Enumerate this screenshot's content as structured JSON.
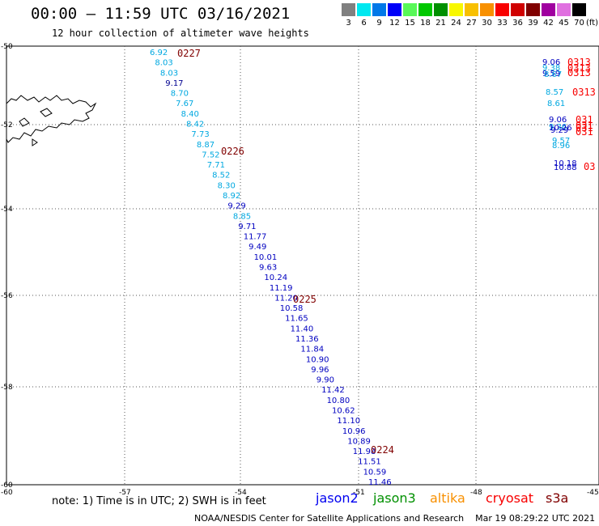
{
  "header": {
    "title": "00:00 – 11:59 UTC 03/16/2021",
    "subtitle": "12 hour collection of altimeter wave heights"
  },
  "legend": {
    "colors": [
      "#808080",
      "#00e8f0",
      "#0078e8",
      "#0000f8",
      "#58f858",
      "#00c800",
      "#009000",
      "#f8f800",
      "#f8c000",
      "#f89000",
      "#f80000",
      "#d00000",
      "#800000",
      "#a000a0",
      "#e070e0",
      "#000000"
    ],
    "labels": [
      "3",
      "6",
      "9",
      "12",
      "15",
      "18",
      "21",
      "24",
      "27",
      "30",
      "33",
      "36",
      "39",
      "42",
      "45",
      "70"
    ],
    "unit": "(ft)"
  },
  "axes": {
    "lat_labels": [
      "-50",
      "-52",
      "-54",
      "-56",
      "-58",
      "-60"
    ],
    "lon_labels": [
      "-60",
      "-57",
      "-54",
      "-51",
      "-48",
      "-45"
    ]
  },
  "time_labels": [
    {
      "text": "0227",
      "color": "#800000"
    },
    {
      "text": "0226",
      "color": "#800000"
    },
    {
      "text": "0225",
      "color": "#800000"
    },
    {
      "text": "0224",
      "color": "#800000"
    }
  ],
  "track_main": {
    "values": [
      "6.92",
      "8.03",
      "8.03",
      "9.17",
      "8.70",
      "7.67",
      "8.40",
      "8.42",
      "7.73",
      "8.87",
      "7.52",
      "7.71",
      "8.52",
      "8.30",
      "8.92",
      "9.29",
      "8.85",
      "9.71",
      "11.77",
      "9.49",
      "10.01",
      "9.63",
      "10.24",
      "11.19",
      "11.20",
      "10.58",
      "11.65",
      "11.40",
      "11.36",
      "11.84",
      "10.90",
      "9.96",
      "9.90",
      "11.42",
      "10.80",
      "10.62",
      "11.10",
      "10.96",
      "10.89",
      "11.98",
      "11.51",
      "10.59",
      "11.46"
    ],
    "colors": [
      "#00a8e0",
      "#00a8e0",
      "#00a8e0",
      "#000090",
      "#00a8e0",
      "#00a8e0",
      "#00a8e0",
      "#00a8e0",
      "#00a8e0",
      "#00a8e0",
      "#00a8e0",
      "#00a8e0",
      "#00a8e0",
      "#00a8e0",
      "#00a8e0",
      "#0000c0",
      "#00a8e0",
      "#0000c0",
      "#0000c0",
      "#0000c0",
      "#0000c0",
      "#0000c0",
      "#0000c0",
      "#0000c0",
      "#0000c0",
      "#0000c0",
      "#0000c0",
      "#0000c0",
      "#0000c0",
      "#0000c0",
      "#0000c0",
      "#0000c0",
      "#0000c0",
      "#0000c0",
      "#0000c0",
      "#0000c0",
      "#0000c0",
      "#0000c0",
      "#0000c0",
      "#0000c0",
      "#0000c0",
      "#0000c0",
      "#0000c0"
    ]
  },
  "track_edge": {
    "values": [
      "9.06",
      "9.38",
      "9.59",
      "8.67",
      "8.57",
      "8.61",
      "9.06",
      "9.36",
      "10.26",
      "9.29",
      "9.57",
      "8.96",
      "10.18",
      "10.88"
    ],
    "colors": [
      "#0000c0",
      "#00a8e0",
      "#0000c0",
      "#00a8e0",
      "#00a8e0",
      "#00a8e0",
      "#0000c0",
      "#00a8e0",
      "#0000c0",
      "#0000c0",
      "#00a8e0",
      "#00a8e0",
      "#0000c0",
      "#0000c0"
    ],
    "time_labels": [
      "0313",
      "0313",
      "0313",
      "0313",
      "031",
      "031",
      "031",
      "031",
      "03"
    ]
  },
  "footer": {
    "note": "note: 1) Time is in UTC; 2) SWH is in feet",
    "satellites": [
      {
        "name": "jason2",
        "color": "#0000f0"
      },
      {
        "name": "jason3",
        "color": "#009000"
      },
      {
        "name": "altika",
        "color": "#f89000"
      },
      {
        "name": "cryosat",
        "color": "#f80000"
      },
      {
        "name": "s3a",
        "color": "#800000"
      }
    ],
    "credit": "NOAA/NESDIS Center for Satellite Applications and Research    Mar 19 08:29:22 UTC 2021"
  }
}
